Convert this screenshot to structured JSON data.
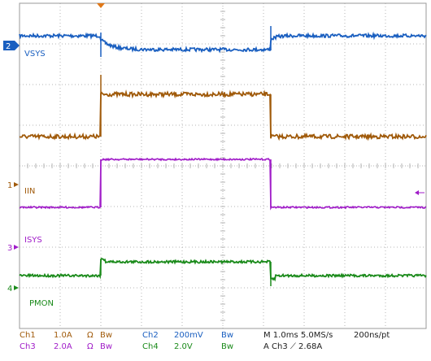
{
  "channels": {
    "ch2": {
      "number": "2",
      "name": "VSYS",
      "color": "#1a5fc0"
    },
    "ch1": {
      "number": "1",
      "name": "IIN",
      "color": "#a05a0a"
    },
    "ch3": {
      "number": "3",
      "name": "ISYS",
      "color": "#a01cc8"
    },
    "ch4": {
      "number": "4",
      "name": "PMON",
      "color": "#1a8a1a"
    }
  },
  "colors": {
    "grid": "#b4b4b4",
    "border": "#9a9a9a",
    "trigger": "#e07818",
    "status_dark": "#202020"
  },
  "status": {
    "row1": {
      "ch1_label": "Ch1",
      "ch1_scale": "1.0A",
      "ch1_omega": "Ω",
      "ch1_bw": "Bw",
      "ch2_label": "Ch2",
      "ch2_scale": "200mV",
      "ch2_bw": "Bw",
      "timebase": "M 1.0ms 5.0MS/s",
      "resolution": "200ns/pt"
    },
    "row2": {
      "ch3_label": "Ch3",
      "ch3_scale": "2.0A",
      "ch3_omega": "Ω",
      "ch3_bw": "Bw",
      "ch4_label": "Ch4",
      "ch4_scale": "2.0V",
      "ch4_bw": "Bw",
      "trigger": "A  Ch3  ⟋  2.68A"
    }
  }
}
